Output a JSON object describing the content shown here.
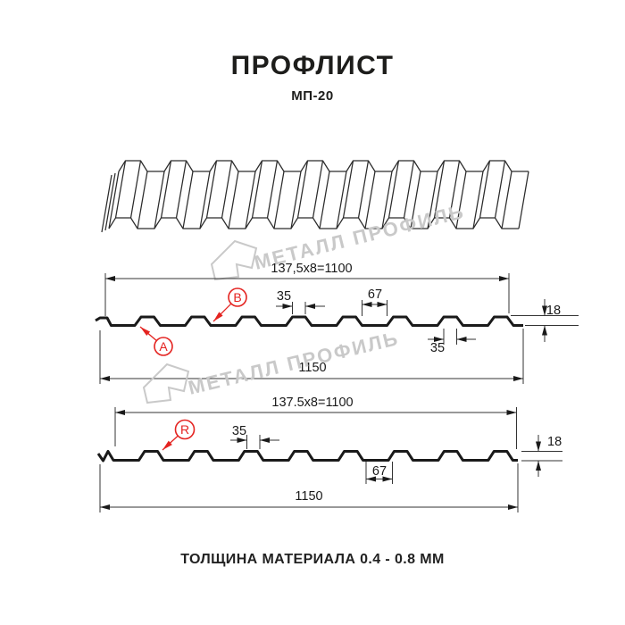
{
  "page": {
    "title": "ПРОФЛИСТ",
    "subtitle": "МП-20",
    "footer": "ТОЛЩИНА МАТЕРИАЛА 0.4 - 0.8 ММ"
  },
  "watermark": {
    "text": "МЕТАЛЛ ПРОФИЛЬ",
    "color": "#c9c9c9"
  },
  "colors": {
    "line": "#1a1a1a",
    "accent_red": "#e42320"
  },
  "drawing1": {
    "labels": {
      "a": "A",
      "b": "B"
    },
    "dims": {
      "pitch": "137,5x8=1100",
      "rib_top": "35",
      "valley": "67",
      "height": "18",
      "rib_top_2": "35",
      "total": "1150"
    }
  },
  "drawing2": {
    "labels": {
      "r": "R"
    },
    "dims": {
      "pitch": "137.5x8=1100",
      "rib_top": "35",
      "valley": "67",
      "height": "18",
      "total": "1150"
    }
  }
}
